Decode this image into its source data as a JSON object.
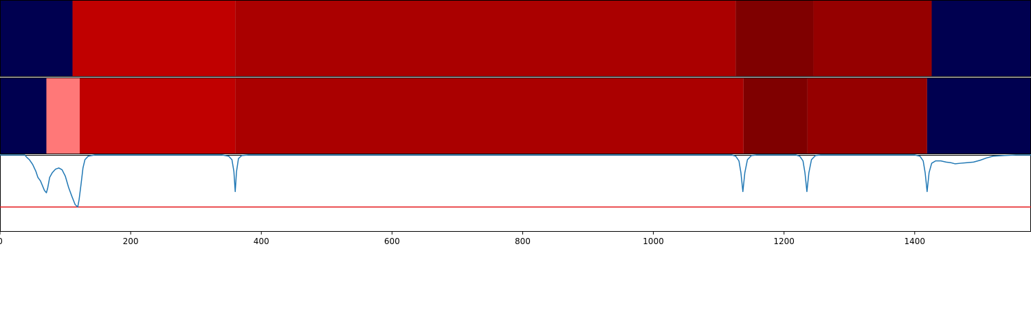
{
  "chart_data": {
    "type": "heatmap",
    "title": "",
    "xlabel": "",
    "ylabel": "",
    "xlim": [
      0,
      1578
    ],
    "x_ticks": [
      {
        "value": 0,
        "label": "0"
      },
      {
        "value": 200,
        "label": "200"
      },
      {
        "value": 400,
        "label": "400"
      },
      {
        "value": 600,
        "label": "600"
      },
      {
        "value": 800,
        "label": "800"
      },
      {
        "value": 1000,
        "label": "1000"
      },
      {
        "value": 1200,
        "label": "1200"
      },
      {
        "value": 1400,
        "label": "1400"
      }
    ],
    "segment_rows": [
      {
        "segments": [
          {
            "start": 0,
            "end": 111,
            "color": "#000050"
          },
          {
            "start": 111,
            "end": 360,
            "color": "#c00000"
          },
          {
            "start": 360,
            "end": 1126,
            "color": "#aa0000"
          },
          {
            "start": 1126,
            "end": 1245,
            "color": "#7f0000"
          },
          {
            "start": 1245,
            "end": 1426,
            "color": "#950000"
          },
          {
            "start": 1426,
            "end": 1578,
            "color": "#000050"
          }
        ]
      },
      {
        "segments": [
          {
            "start": 0,
            "end": 71,
            "color": "#000050"
          },
          {
            "start": 71,
            "end": 122,
            "color": "#ff7878"
          },
          {
            "start": 122,
            "end": 360,
            "color": "#c00000"
          },
          {
            "start": 360,
            "end": 1138,
            "color": "#aa0000"
          },
          {
            "start": 1138,
            "end": 1236,
            "color": "#7f0000"
          },
          {
            "start": 1236,
            "end": 1419,
            "color": "#950000"
          },
          {
            "start": 1419,
            "end": 1578,
            "color": "#000050"
          }
        ]
      }
    ],
    "line_panel": {
      "ylim": [
        -1.3,
        0
      ],
      "threshold": -0.88,
      "threshold_color": "#e41a1c",
      "line_color": "#1f77b4",
      "points": [
        [
          0,
          0
        ],
        [
          38,
          0
        ],
        [
          41,
          -0.04
        ],
        [
          45,
          -0.08
        ],
        [
          50,
          -0.16
        ],
        [
          55,
          -0.28
        ],
        [
          58,
          -0.38
        ],
        [
          62,
          -0.44
        ],
        [
          65,
          -0.52
        ],
        [
          68,
          -0.6
        ],
        [
          71,
          -0.64
        ],
        [
          73,
          -0.56
        ],
        [
          76,
          -0.38
        ],
        [
          80,
          -0.3
        ],
        [
          85,
          -0.24
        ],
        [
          90,
          -0.22
        ],
        [
          95,
          -0.25
        ],
        [
          100,
          -0.36
        ],
        [
          105,
          -0.55
        ],
        [
          110,
          -0.7
        ],
        [
          115,
          -0.84
        ],
        [
          119,
          -0.88
        ],
        [
          121,
          -0.76
        ],
        [
          124,
          -0.5
        ],
        [
          127,
          -0.22
        ],
        [
          130,
          -0.08
        ],
        [
          135,
          -0.02
        ],
        [
          145,
          0
        ],
        [
          340,
          0
        ],
        [
          350,
          -0.02
        ],
        [
          355,
          -0.08
        ],
        [
          358,
          -0.28
        ],
        [
          360,
          -0.62
        ],
        [
          362,
          -0.28
        ],
        [
          365,
          -0.06
        ],
        [
          370,
          -0.01
        ],
        [
          380,
          0
        ],
        [
          1120,
          0
        ],
        [
          1126,
          -0.02
        ],
        [
          1131,
          -0.1
        ],
        [
          1134,
          -0.3
        ],
        [
          1137,
          -0.62
        ],
        [
          1140,
          -0.3
        ],
        [
          1144,
          -0.08
        ],
        [
          1150,
          -0.01
        ],
        [
          1158,
          0
        ],
        [
          1218,
          0
        ],
        [
          1224,
          -0.02
        ],
        [
          1229,
          -0.1
        ],
        [
          1232,
          -0.3
        ],
        [
          1235,
          -0.62
        ],
        [
          1238,
          -0.3
        ],
        [
          1242,
          -0.08
        ],
        [
          1248,
          -0.01
        ],
        [
          1256,
          0
        ],
        [
          1400,
          0
        ],
        [
          1408,
          -0.02
        ],
        [
          1413,
          -0.1
        ],
        [
          1416,
          -0.3
        ],
        [
          1419,
          -0.62
        ],
        [
          1422,
          -0.3
        ],
        [
          1426,
          -0.14
        ],
        [
          1432,
          -0.1
        ],
        [
          1440,
          -0.1
        ],
        [
          1448,
          -0.12
        ],
        [
          1455,
          -0.13
        ],
        [
          1462,
          -0.15
        ],
        [
          1470,
          -0.14
        ],
        [
          1480,
          -0.13
        ],
        [
          1490,
          -0.12
        ],
        [
          1500,
          -0.09
        ],
        [
          1510,
          -0.05
        ],
        [
          1520,
          -0.02
        ],
        [
          1535,
          -0.01
        ],
        [
          1555,
          0
        ],
        [
          1578,
          0
        ]
      ]
    }
  }
}
